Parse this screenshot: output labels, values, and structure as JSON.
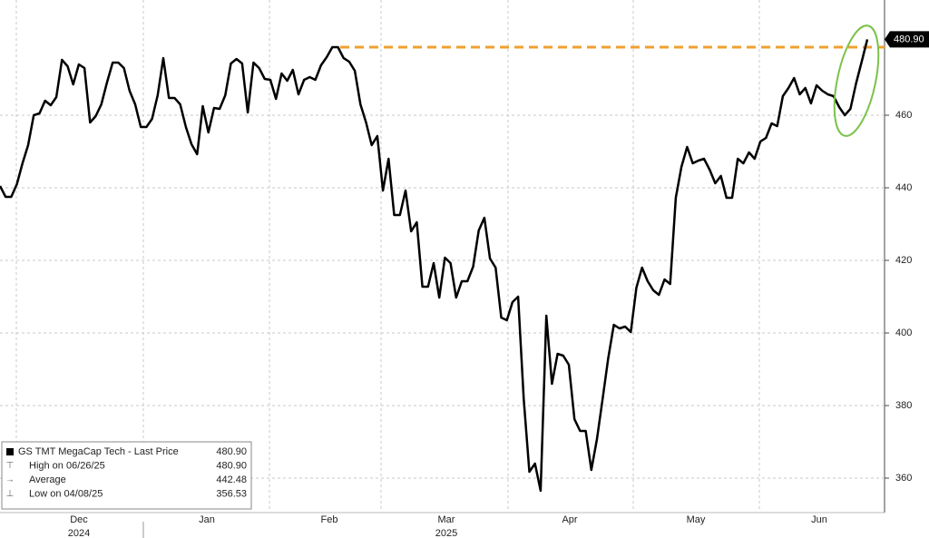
{
  "chart_data": {
    "type": "line",
    "series": [
      {
        "name": "GS TMT MegaCap Tech - Last Price",
        "color": "#000000",
        "values": [
          440.5,
          437.5,
          437.5,
          441,
          446.75,
          451.75,
          460,
          460.5,
          464,
          462.75,
          465,
          475.25,
          473.5,
          468.5,
          474,
          473,
          458,
          459.75,
          463,
          469,
          474.5,
          474.5,
          473,
          466.75,
          463,
          456.75,
          456.75,
          459,
          465.5,
          475.75,
          464.75,
          464.75,
          463,
          456.75,
          452,
          449.25,
          462.5,
          455.25,
          462,
          461.75,
          465.5,
          474.25,
          475.5,
          474.25,
          460.75,
          474.5,
          473,
          470,
          469.75,
          464.5,
          471.5,
          469.5,
          472.5,
          465.75,
          469.75,
          470.5,
          469.75,
          473.75,
          476,
          478.75,
          478.75,
          475.75,
          474.75,
          472.25,
          463,
          458,
          451.75,
          454.25,
          439.25,
          448,
          432.5,
          432.5,
          439.25,
          428,
          430.5,
          412.75,
          412.75,
          419.25,
          409.75,
          420.75,
          419.25,
          409.75,
          414.25,
          414.25,
          418.25,
          428.25,
          431.75,
          420.5,
          418,
          404.25,
          403.5,
          408.5,
          410,
          381.75,
          361.75,
          364,
          356.53,
          404.75,
          386,
          394.25,
          393.75,
          391.25,
          376.25,
          373,
          373,
          362.25,
          370.75,
          381.75,
          393,
          402.25,
          401.25,
          401.75,
          400.25,
          412.5,
          418,
          414.25,
          411.75,
          410.5,
          414.75,
          413.5,
          437.25,
          445.75,
          451.25,
          446.75,
          447.5,
          448,
          445,
          441.25,
          443.25,
          437.25,
          437.25,
          448,
          446.75,
          449.75,
          448,
          452.75,
          453.75,
          457.75,
          457,
          465.25,
          467.5,
          470.25,
          465.75,
          467.5,
          463.25,
          468.25,
          466.75,
          465.75,
          465.25,
          462.25,
          460,
          461.75,
          468.75,
          474.75,
          480.9
        ]
      }
    ],
    "last_label": {
      "value": 480.9,
      "label": "480.90"
    },
    "reference_line": {
      "value": 478.75,
      "color": "#f0a030"
    },
    "ylim": [
      351,
      491.75
    ],
    "yticks": [
      360,
      380,
      400,
      420,
      440,
      460
    ],
    "grid": true,
    "xticks": [
      {
        "label": "Dec",
        "year": "2024"
      },
      {
        "label": "Jan"
      },
      {
        "label": "Feb"
      },
      {
        "label": "Mar",
        "year": "2025"
      },
      {
        "label": "Apr"
      },
      {
        "label": "May"
      },
      {
        "label": "Jun"
      }
    ],
    "legend": [
      {
        "label": "GS TMT MegaCap Tech - Last Price",
        "value": {
          "value": 480.9,
          "label": "480.90"
        }
      },
      {
        "label": "High on 06/26/25",
        "value": {
          "value": 480.9,
          "label": "480.90"
        }
      },
      {
        "label": "Average",
        "value": 442.48
      },
      {
        "label": "Low on 04/08/25",
        "value": 356.53
      }
    ]
  }
}
